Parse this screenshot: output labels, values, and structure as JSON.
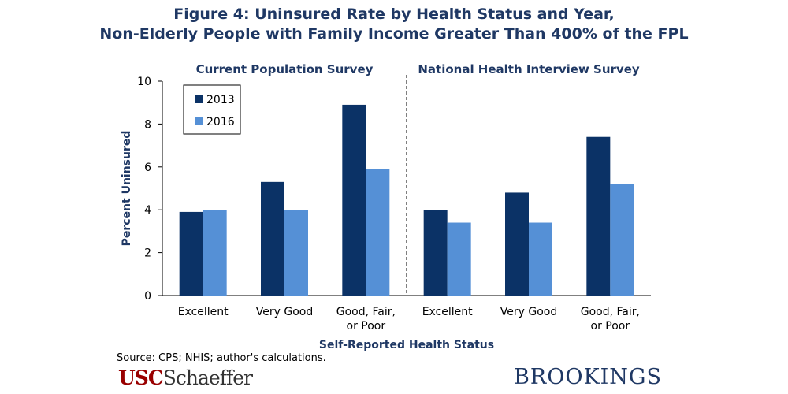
{
  "title": {
    "line1": "Figure 4: Uninsured Rate by Health Status and Year,",
    "line2": "Non-Elderly People with Family Income Greater Than 400% of the FPL"
  },
  "chart_data": {
    "type": "bar",
    "panels": [
      {
        "title": "Current Population Survey",
        "categories": [
          "Excellent",
          "Very Good",
          "Good, Fair, or Poor"
        ],
        "series": [
          {
            "name": "2013",
            "values": [
              3.9,
              5.3,
              8.9
            ]
          },
          {
            "name": "2016",
            "values": [
              4.0,
              4.0,
              5.9
            ]
          }
        ]
      },
      {
        "title": "National Health Interview Survey",
        "categories": [
          "Excellent",
          "Very Good",
          "Good, Fair, or Poor"
        ],
        "series": [
          {
            "name": "2013",
            "values": [
              4.0,
              4.8,
              7.4
            ]
          },
          {
            "name": "2016",
            "values": [
              3.4,
              3.4,
              5.2
            ]
          }
        ]
      }
    ],
    "legend": [
      "2013",
      "2016"
    ],
    "xlabel": "Self-Reported Health Status",
    "ylabel": "Percent Uninsured",
    "ylim": [
      0,
      10
    ],
    "yticks": [
      0,
      2,
      4,
      6,
      8,
      10
    ],
    "colors": {
      "2013": "#0b3266",
      "2016": "#5590d6"
    },
    "legend_position": "top-left"
  },
  "source": "Source: CPS; NHIS; author's calculations.",
  "logos": {
    "usc": "USC",
    "schaeffer": "Schaeffer",
    "brookings": "BROOKINGS"
  }
}
